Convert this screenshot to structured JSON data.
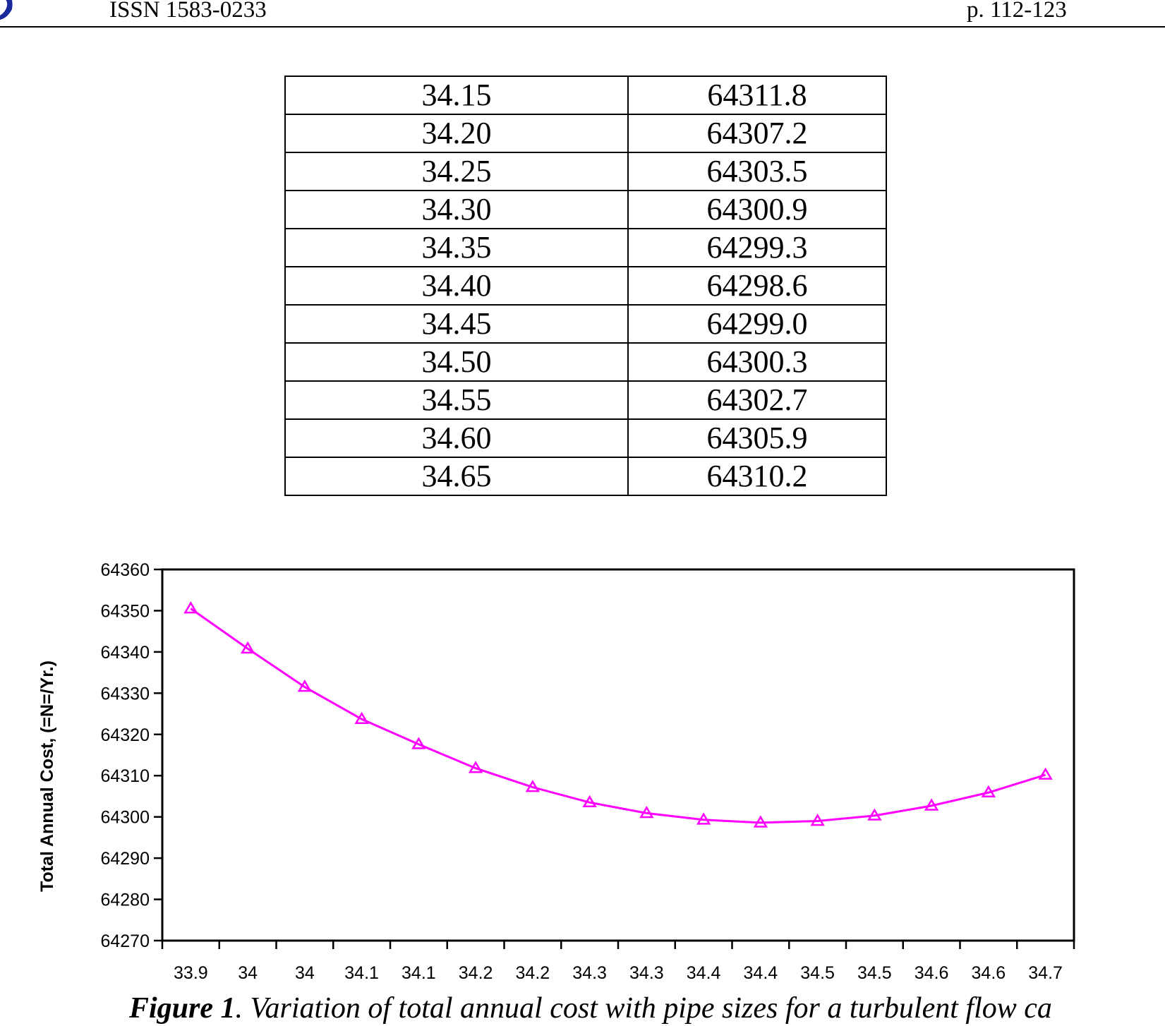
{
  "header": {
    "issn": "ISSN 1583-0233",
    "pages": "p. 112-123"
  },
  "table": {
    "rows": [
      [
        "34.15",
        "64311.8"
      ],
      [
        "34.20",
        "64307.2"
      ],
      [
        "34.25",
        "64303.5"
      ],
      [
        "34.30",
        "64300.9"
      ],
      [
        "34.35",
        "64299.3"
      ],
      [
        "34.40",
        "64298.6"
      ],
      [
        "34.45",
        "64299.0"
      ],
      [
        "34.50",
        "64300.3"
      ],
      [
        "34.55",
        "64302.7"
      ],
      [
        "34.60",
        "64305.9"
      ],
      [
        "34.65",
        "64310.2"
      ]
    ]
  },
  "caption": {
    "label": "Figure 1",
    "text": ". Variation of total annual cost with pipe sizes for a turbulent flow ca"
  },
  "chart_data": {
    "type": "line",
    "ylabel": "Total Annual Cost, (=N=/Yr.)",
    "xlabel": "",
    "ylim": [
      64270,
      64360
    ],
    "yticks": [
      64270,
      64280,
      64290,
      64300,
      64310,
      64320,
      64330,
      64340,
      64350,
      64360
    ],
    "x_tick_labels": [
      "33.9",
      "34",
      "34",
      "34.1",
      "34.1",
      "34.2",
      "34.2",
      "34.3",
      "34.3",
      "34.4",
      "34.4",
      "34.5",
      "34.5",
      "34.6",
      "34.6",
      "34.7"
    ],
    "series": [
      {
        "color": "#ff00ff",
        "marker": "triangle",
        "values": [
          64350.5,
          64340.8,
          64331.5,
          64323.7,
          64317.6,
          64311.8,
          64307.2,
          64303.5,
          64300.9,
          64299.3,
          64298.6,
          64299.0,
          64300.3,
          64302.7,
          64305.9,
          64310.2
        ]
      }
    ],
    "grid": false,
    "legend": "none"
  }
}
